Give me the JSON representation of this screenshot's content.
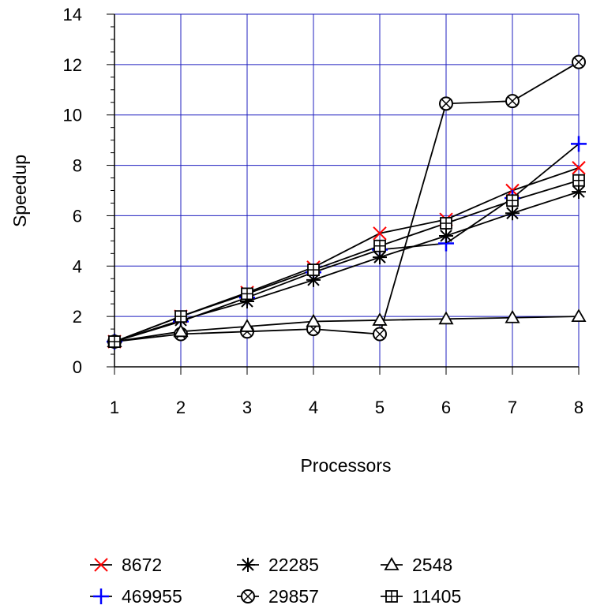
{
  "chart_data": {
    "type": "line",
    "title": "",
    "xlabel": "Processors",
    "ylabel": "Speedup",
    "x": [
      1,
      2,
      3,
      4,
      5,
      6,
      7,
      8
    ],
    "xlim": [
      1,
      8
    ],
    "ylim": [
      0,
      14
    ],
    "yticks": [
      0,
      2,
      4,
      6,
      8,
      10,
      12,
      14
    ],
    "grid": true,
    "legend": "bottom",
    "series": [
      {
        "name": "8672",
        "marker": "x",
        "color": "#ff0000",
        "values": [
          1,
          2.0,
          2.95,
          3.95,
          5.3,
          5.85,
          7.0,
          7.9
        ]
      },
      {
        "name": "469955",
        "marker": "plus",
        "color": "#0000ff",
        "values": [
          1,
          1.8,
          2.75,
          3.75,
          4.65,
          4.9,
          6.7,
          8.85
        ]
      },
      {
        "name": "22285",
        "marker": "asterisk",
        "color": "#000000",
        "values": [
          1,
          1.85,
          2.6,
          3.45,
          4.35,
          5.2,
          6.1,
          6.95
        ]
      },
      {
        "name": "29857",
        "marker": "circle-x",
        "color": "#000000",
        "values": [
          1,
          1.3,
          1.4,
          1.5,
          1.3,
          10.45,
          10.55,
          12.1
        ]
      },
      {
        "name": "2548",
        "marker": "triangle",
        "color": "#000000",
        "values": [
          1,
          1.4,
          1.6,
          1.8,
          1.85,
          1.9,
          1.95,
          2.0
        ]
      },
      {
        "name": "11405",
        "marker": "square-plus",
        "color": "#000000",
        "values": [
          1,
          2.0,
          2.9,
          3.85,
          4.8,
          5.7,
          6.6,
          7.4
        ]
      }
    ]
  }
}
